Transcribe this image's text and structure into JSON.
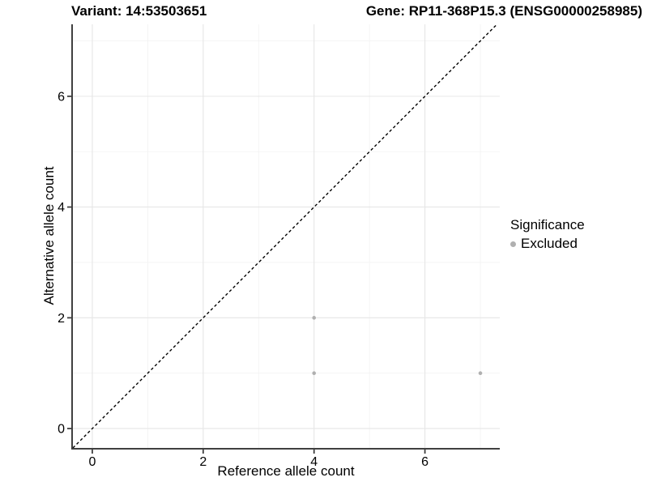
{
  "chart_data": {
    "type": "scatter",
    "title_variant": "Variant: 14:53503651",
    "title_gene": "Gene: RP11-368P15.3 (ENSG00000258985)",
    "xlabel": "Reference allele count",
    "ylabel": "Alternative allele count",
    "xlim": [
      -0.35,
      7.35
    ],
    "ylim": [
      -0.35,
      7.3
    ],
    "x_ticks": [
      0,
      2,
      4,
      6
    ],
    "y_ticks": [
      0,
      2,
      4,
      6
    ],
    "x_minor_gridlines": [
      1,
      3,
      5,
      7
    ],
    "y_minor_gridlines": [
      1,
      3,
      5,
      7
    ],
    "grid": true,
    "legend_title": "Significance",
    "legend_position": "right",
    "series": [
      {
        "name": "Excluded",
        "color": "#b0b0b0",
        "points": [
          [
            4,
            2
          ],
          [
            4,
            1
          ],
          [
            7,
            1
          ]
        ]
      }
    ],
    "identity_line": {
      "equation": "y = x",
      "style": "dashed",
      "color": "#000000"
    },
    "colors": {
      "background": "#ffffff",
      "grid_major": "#e6e6e6",
      "grid_minor": "#f2f2f2",
      "axis": "#404040",
      "text": "#000000"
    }
  }
}
